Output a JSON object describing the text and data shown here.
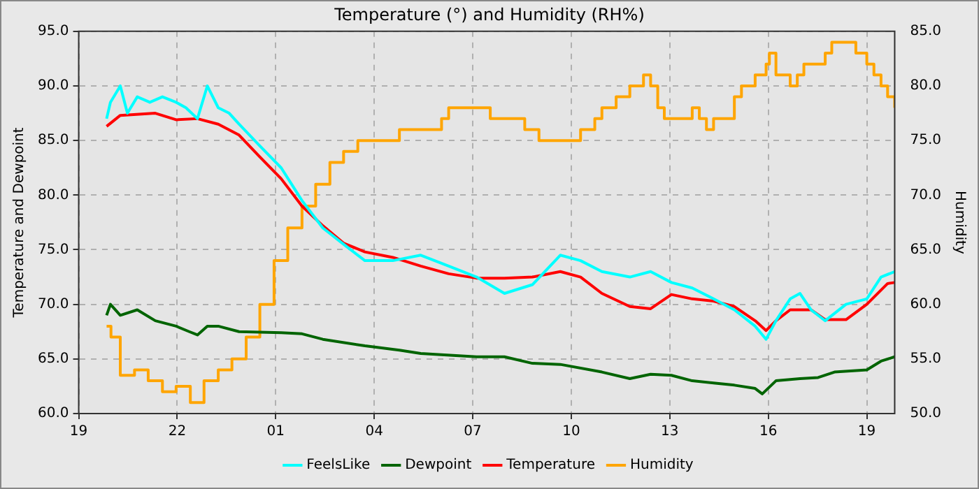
{
  "chart_data": {
    "type": "line",
    "title": "Temperature (°) and Humidity (RH%)",
    "ylabel": "Temperature and Dewpoint",
    "y2label": "Humidity",
    "xlim": [
      "--01-01T19:00",
      "--01-02T19:51"
    ],
    "xticks": [
      {
        "value": "--01-01T19:00",
        "label": "19"
      },
      {
        "value": "--01-01T22:00",
        "label": "22"
      },
      {
        "value": "--01-02T01:00",
        "label": "01"
      },
      {
        "value": "--01-02T04:00",
        "label": "04"
      },
      {
        "value": "--01-02T07:00",
        "label": "07"
      },
      {
        "value": "--01-02T10:00",
        "label": "10"
      },
      {
        "value": "--01-02T13:00",
        "label": "13"
      },
      {
        "value": "--01-02T16:00",
        "label": "16"
      },
      {
        "value": "--01-02T19:00",
        "label": "19"
      }
    ],
    "ylim": [
      60,
      95
    ],
    "yticks": [
      {
        "value": 60,
        "label": "60.0"
      },
      {
        "value": 65,
        "label": "65.0"
      },
      {
        "value": 70,
        "label": "70.0"
      },
      {
        "value": 75,
        "label": "75.0"
      },
      {
        "value": 80,
        "label": "80.0"
      },
      {
        "value": 85,
        "label": "85.0"
      },
      {
        "value": 90,
        "label": "90.0"
      },
      {
        "value": 95,
        "label": "95.0"
      }
    ],
    "y2lim": [
      50,
      85
    ],
    "y2ticks": [
      {
        "value": 50,
        "label": "50.0"
      },
      {
        "value": 55,
        "label": "55.0"
      },
      {
        "value": 60,
        "label": "60.0"
      },
      {
        "value": 65,
        "label": "65.0"
      },
      {
        "value": 70,
        "label": "70.0"
      },
      {
        "value": 75,
        "label": "75.0"
      },
      {
        "value": 80,
        "label": "80.0"
      },
      {
        "value": 85,
        "label": "85.0"
      }
    ],
    "grid": true,
    "legend": "bottom",
    "marker": "none",
    "line_style": "solid",
    "series": [
      {
        "name": "FeelsLike",
        "color": "#00ffff",
        "x": [
          "--01-01T19:51",
          "--01-01T19:58",
          "--01-01T20:16",
          "--01-01T20:29",
          "--01-01T20:47",
          "--01-01T21:10",
          "--01-01T21:33",
          "--01-01T21:58",
          "--01-01T22:16",
          "--01-01T22:37",
          "--01-01T22:55",
          "--01-01T23:15",
          "--01-01T23:35",
          "--01-01T23:53",
          "--01-02T00:31",
          "--01-02T01:10",
          "--01-02T01:48",
          "--01-02T02:26",
          "--01-02T03:04",
          "--01-02T03:43",
          "--01-02T04:34",
          "--01-02T05:25",
          "--01-02T06:16",
          "--01-02T07:07",
          "--01-02T07:58",
          "--01-02T08:49",
          "--01-02T09:40",
          "--01-02T10:17",
          "--01-02T10:56",
          "--01-02T11:47",
          "--01-02T12:25",
          "--01-02T13:03",
          "--01-02T13:41",
          "--01-02T14:20",
          "--01-02T14:58",
          "--01-02T15:36",
          "--01-02T15:56",
          "--01-02T16:14",
          "--01-02T16:40",
          "--01-02T16:58",
          "--01-02T17:18",
          "--01-02T17:44",
          "--01-02T18:22",
          "--01-02T19:00",
          "--01-02T19:26",
          "--01-02T19:51"
        ],
        "values": [
          87.0,
          88.5,
          90.0,
          87.5,
          89.0,
          88.5,
          89.0,
          88.5,
          88.0,
          87.0,
          90.0,
          88.0,
          87.5,
          86.5,
          84.5,
          82.5,
          79.5,
          77.0,
          75.5,
          74.0,
          74.0,
          74.5,
          73.5,
          72.5,
          71.0,
          71.8,
          74.5,
          74.0,
          73.0,
          72.5,
          73.0,
          72.0,
          71.5,
          70.5,
          69.5,
          68.0,
          66.8,
          68.5,
          70.5,
          71.0,
          69.5,
          68.5,
          70.0,
          70.5,
          72.5,
          73.0
        ]
      },
      {
        "name": "Dewpoint",
        "color": "#006400",
        "x": [
          "--01-01T19:51",
          "--01-01T19:58",
          "--01-01T20:16",
          "--01-01T20:47",
          "--01-01T21:20",
          "--01-01T21:58",
          "--01-01T22:22",
          "--01-01T22:37",
          "--01-01T22:55",
          "--01-01T23:15",
          "--01-01T23:53",
          "--01-02T01:10",
          "--01-02T01:48",
          "--01-02T02:26",
          "--01-02T03:43",
          "--01-02T04:46",
          "--01-02T05:25",
          "--01-02T07:07",
          "--01-02T07:58",
          "--01-02T08:49",
          "--01-02T09:40",
          "--01-02T10:56",
          "--01-02T11:47",
          "--01-02T12:25",
          "--01-02T13:03",
          "--01-02T13:41",
          "--01-02T14:20",
          "--01-02T14:58",
          "--01-02T15:36",
          "--01-02T15:49",
          "--01-02T16:14",
          "--01-02T16:58",
          "--01-02T17:31",
          "--01-02T18:01",
          "--01-02T19:00",
          "--01-02T19:26",
          "--01-02T19:51"
        ],
        "values": [
          69.0,
          70.0,
          69.0,
          69.5,
          68.5,
          68.0,
          67.5,
          67.2,
          68.0,
          68.0,
          67.5,
          67.4,
          67.3,
          66.8,
          66.2,
          65.8,
          65.5,
          65.2,
          65.2,
          64.6,
          64.5,
          63.8,
          63.2,
          63.6,
          63.5,
          63.0,
          62.8,
          62.6,
          62.3,
          61.8,
          63.0,
          63.2,
          63.3,
          63.8,
          64.0,
          64.8,
          65.2
        ]
      },
      {
        "name": "Temperature",
        "color": "#ff0000",
        "x": [
          "--01-01T19:51",
          "--01-01T20:16",
          "--01-01T21:20",
          "--01-01T21:58",
          "--01-01T22:37",
          "--01-01T23:15",
          "--01-01T23:53",
          "--01-02T00:31",
          "--01-02T01:10",
          "--01-02T01:48",
          "--01-02T02:26",
          "--01-02T03:04",
          "--01-02T03:43",
          "--01-02T04:34",
          "--01-02T05:25",
          "--01-02T06:16",
          "--01-02T07:07",
          "--01-02T07:58",
          "--01-02T08:49",
          "--01-02T09:40",
          "--01-02T10:17",
          "--01-02T10:56",
          "--01-02T11:47",
          "--01-02T12:25",
          "--01-02T13:03",
          "--01-02T13:41",
          "--01-02T14:20",
          "--01-02T14:58",
          "--01-02T15:36",
          "--01-02T15:56",
          "--01-02T16:14",
          "--01-02T16:40",
          "--01-02T17:18",
          "--01-02T17:44",
          "--01-02T18:22",
          "--01-02T19:00",
          "--01-02T19:38",
          "--01-02T19:51"
        ],
        "values": [
          86.3,
          87.3,
          87.5,
          86.9,
          87.0,
          86.5,
          85.5,
          83.5,
          81.5,
          79.0,
          77.2,
          75.6,
          74.8,
          74.3,
          73.5,
          72.8,
          72.4,
          72.4,
          72.5,
          73.0,
          72.5,
          71.0,
          69.8,
          69.6,
          70.9,
          70.5,
          70.3,
          69.8,
          68.5,
          67.6,
          68.5,
          69.5,
          69.5,
          68.6,
          68.6,
          70.0,
          71.9,
          72.0
        ]
      },
      {
        "name": "Humidity",
        "color": "#ffa500",
        "type": "step",
        "axis": "y2",
        "x": [
          "--01-01T19:51",
          "--01-01T19:59",
          "--01-01T20:16",
          "--01-01T20:42",
          "--01-01T21:07",
          "--01-01T21:33",
          "--01-01T21:58",
          "--01-01T22:24",
          "--01-01T22:49",
          "--01-01T23:15",
          "--01-01T23:40",
          "--01-02T00:06",
          "--01-02T00:31",
          "--01-02T00:57",
          "--01-02T01:22",
          "--01-02T01:48",
          "--01-02T02:13",
          "--01-02T02:39",
          "--01-02T03:04",
          "--01-02T03:30",
          "--01-02T04:46",
          "--01-02T06:03",
          "--01-02T06:16",
          "--01-02T07:32",
          "--01-02T08:35",
          "--01-02T09:01",
          "--01-02T10:17",
          "--01-02T10:43",
          "--01-02T10:56",
          "--01-02T11:22",
          "--01-02T11:47",
          "--01-02T12:12",
          "--01-02T12:25",
          "--01-02T12:38",
          "--01-02T12:50",
          "--01-02T13:41",
          "--01-02T13:54",
          "--01-02T14:07",
          "--01-02T14:20",
          "--01-02T14:58",
          "--01-02T15:11",
          "--01-02T15:36",
          "--01-02T15:56",
          "--01-02T16:02",
          "--01-02T16:14",
          "--01-02T16:40",
          "--01-02T16:53",
          "--01-02T17:05",
          "--01-02T17:44",
          "--01-02T17:56",
          "--01-02T18:40",
          "--01-02T19:00",
          "--01-02T19:13",
          "--01-02T19:26",
          "--01-02T19:38",
          "--01-02T19:51"
        ],
        "values": [
          58,
          57,
          53.5,
          54,
          53,
          52,
          52.5,
          51,
          53,
          54,
          55,
          57,
          60,
          64,
          67,
          69,
          71,
          73,
          74,
          75,
          76,
          77,
          78,
          77,
          76,
          75,
          76,
          77,
          78,
          79,
          80,
          81,
          80,
          78,
          77,
          78,
          77,
          76,
          77,
          79,
          80,
          81,
          82,
          83,
          81,
          80,
          81,
          82,
          83,
          84,
          83,
          82,
          81,
          80,
          79,
          78
        ]
      }
    ]
  }
}
